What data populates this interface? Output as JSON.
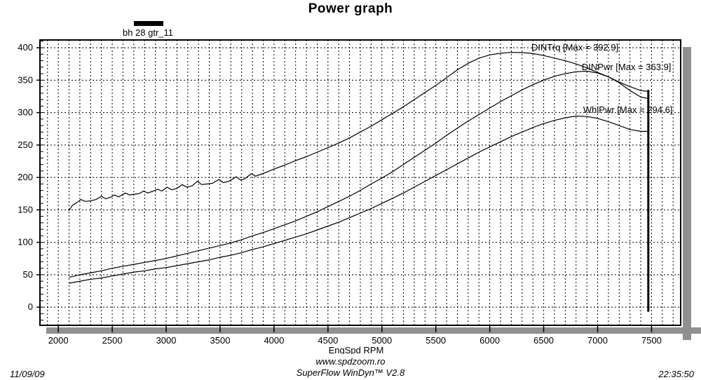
{
  "title": "Power graph",
  "legend": {
    "run_label": "bh 28 gtr_11",
    "swatch_color": "#000000"
  },
  "footer": {
    "website": "www.spdzoom.ro",
    "software": "SuperFlow WinDyn™ V2.8",
    "date": "11/09/09",
    "time": "22:35:50"
  },
  "chart_data": {
    "type": "line",
    "title": "Power graph",
    "xlabel": "EngSpd  RPM",
    "ylabel": "",
    "xlim": [
      1830,
      7770
    ],
    "ylim": [
      -28,
      412
    ],
    "xticks": [
      2000,
      2500,
      3000,
      3500,
      4000,
      4500,
      5000,
      5500,
      6000,
      6500,
      7000,
      7500
    ],
    "yticks": [
      0,
      50,
      100,
      150,
      200,
      250,
      300,
      350,
      400
    ],
    "grid": {
      "x_step": 100,
      "y_minor_step": 10,
      "style": "dashed",
      "color": "#000000"
    },
    "colors": {
      "curve": "#000000",
      "shadow": "#909090",
      "axis": "#000000"
    },
    "legend_position": "above-plot-left",
    "end_marker": {
      "rpm": 7470,
      "value_top": 335,
      "value_bottom": -7
    },
    "series": [
      {
        "name": "DINTrq",
        "label": "DINTrq [Max = 392.9]",
        "max": 392.9,
        "label_anchor": {
          "rpm": 6386,
          "value": 400
        },
        "points": [
          [
            2100,
            149
          ],
          [
            2130,
            157
          ],
          [
            2170,
            161
          ],
          [
            2210,
            166
          ],
          [
            2250,
            163
          ],
          [
            2300,
            164
          ],
          [
            2350,
            166
          ],
          [
            2400,
            171
          ],
          [
            2440,
            167
          ],
          [
            2490,
            170
          ],
          [
            2520,
            173
          ],
          [
            2560,
            170
          ],
          [
            2620,
            176
          ],
          [
            2660,
            173
          ],
          [
            2700,
            174
          ],
          [
            2750,
            175
          ],
          [
            2790,
            179
          ],
          [
            2830,
            176
          ],
          [
            2880,
            179
          ],
          [
            2920,
            182
          ],
          [
            2960,
            179
          ],
          [
            3010,
            185
          ],
          [
            3050,
            181
          ],
          [
            3100,
            183
          ],
          [
            3150,
            189
          ],
          [
            3190,
            185
          ],
          [
            3240,
            187
          ],
          [
            3290,
            194
          ],
          [
            3330,
            189
          ],
          [
            3380,
            190
          ],
          [
            3430,
            191
          ],
          [
            3490,
            197
          ],
          [
            3530,
            192
          ],
          [
            3580,
            194
          ],
          [
            3650,
            201
          ],
          [
            3690,
            196
          ],
          [
            3730,
            198
          ],
          [
            3790,
            206
          ],
          [
            3830,
            202
          ],
          [
            3880,
            205
          ],
          [
            3930,
            208
          ],
          [
            4000,
            213
          ],
          [
            4100,
            219
          ],
          [
            4200,
            226
          ],
          [
            4300,
            232
          ],
          [
            4400,
            239
          ],
          [
            4500,
            246
          ],
          [
            4600,
            253
          ],
          [
            4700,
            261
          ],
          [
            4800,
            270
          ],
          [
            4900,
            279
          ],
          [
            5000,
            289
          ],
          [
            5100,
            299
          ],
          [
            5200,
            309
          ],
          [
            5300,
            320
          ],
          [
            5400,
            331
          ],
          [
            5500,
            342
          ],
          [
            5600,
            354
          ],
          [
            5700,
            366
          ],
          [
            5800,
            376
          ],
          [
            5900,
            384
          ],
          [
            6000,
            389
          ],
          [
            6100,
            391.5
          ],
          [
            6200,
            392.9
          ],
          [
            6300,
            392.5
          ],
          [
            6400,
            391
          ],
          [
            6500,
            388
          ],
          [
            6600,
            384
          ],
          [
            6700,
            380
          ],
          [
            6800,
            375
          ],
          [
            6900,
            369
          ],
          [
            7000,
            362
          ],
          [
            7100,
            355
          ],
          [
            7200,
            347
          ],
          [
            7300,
            340
          ],
          [
            7400,
            334
          ],
          [
            7460,
            333
          ]
        ]
      },
      {
        "name": "DINPwr",
        "label": "DINPwr [Max = 363.9]",
        "max": 363.9,
        "label_anchor": {
          "rpm": 6853,
          "value": 370
        },
        "points": [
          [
            2100,
            46
          ],
          [
            2200,
            50
          ],
          [
            2300,
            53
          ],
          [
            2400,
            56
          ],
          [
            2500,
            60
          ],
          [
            2600,
            63
          ],
          [
            2700,
            66
          ],
          [
            2800,
            69
          ],
          [
            2900,
            72
          ],
          [
            3000,
            75
          ],
          [
            3100,
            79
          ],
          [
            3200,
            83
          ],
          [
            3300,
            87
          ],
          [
            3400,
            91
          ],
          [
            3500,
            95
          ],
          [
            3600,
            99
          ],
          [
            3700,
            104
          ],
          [
            3800,
            110
          ],
          [
            3900,
            115
          ],
          [
            4000,
            121
          ],
          [
            4100,
            127
          ],
          [
            4200,
            133
          ],
          [
            4300,
            140
          ],
          [
            4400,
            147
          ],
          [
            4500,
            155
          ],
          [
            4600,
            163
          ],
          [
            4700,
            171
          ],
          [
            4800,
            180
          ],
          [
            4900,
            190
          ],
          [
            5000,
            199
          ],
          [
            5100,
            209
          ],
          [
            5200,
            220
          ],
          [
            5300,
            231
          ],
          [
            5400,
            242
          ],
          [
            5500,
            253
          ],
          [
            5600,
            265
          ],
          [
            5700,
            276
          ],
          [
            5800,
            287
          ],
          [
            5900,
            297
          ],
          [
            6000,
            307
          ],
          [
            6100,
            317
          ],
          [
            6200,
            326
          ],
          [
            6300,
            335
          ],
          [
            6400,
            343
          ],
          [
            6500,
            350
          ],
          [
            6600,
            356
          ],
          [
            6700,
            360
          ],
          [
            6800,
            363
          ],
          [
            6900,
            363.9
          ],
          [
            7000,
            361
          ],
          [
            7100,
            355
          ],
          [
            7200,
            346
          ],
          [
            7300,
            334
          ],
          [
            7400,
            324
          ],
          [
            7460,
            322
          ]
        ]
      },
      {
        "name": "WhlPwr",
        "label": "WhlPwr [Max = 294.6]",
        "max": 294.6,
        "label_anchor": {
          "rpm": 6866,
          "value": 304
        },
        "points": [
          [
            2100,
            37
          ],
          [
            2200,
            40
          ],
          [
            2300,
            43
          ],
          [
            2400,
            45
          ],
          [
            2500,
            48
          ],
          [
            2600,
            51
          ],
          [
            2700,
            54
          ],
          [
            2800,
            56
          ],
          [
            2900,
            59
          ],
          [
            3000,
            61
          ],
          [
            3100,
            64
          ],
          [
            3200,
            67
          ],
          [
            3300,
            70
          ],
          [
            3400,
            73
          ],
          [
            3500,
            77
          ],
          [
            3600,
            80
          ],
          [
            3700,
            84
          ],
          [
            3800,
            89
          ],
          [
            3900,
            93
          ],
          [
            4000,
            98
          ],
          [
            4100,
            103
          ],
          [
            4200,
            108
          ],
          [
            4300,
            113
          ],
          [
            4400,
            119
          ],
          [
            4500,
            125
          ],
          [
            4600,
            131
          ],
          [
            4700,
            138
          ],
          [
            4800,
            145
          ],
          [
            4900,
            152
          ],
          [
            5000,
            160
          ],
          [
            5100,
            168
          ],
          [
            5200,
            176
          ],
          [
            5300,
            185
          ],
          [
            5400,
            194
          ],
          [
            5500,
            203
          ],
          [
            5600,
            212
          ],
          [
            5700,
            221
          ],
          [
            5800,
            230
          ],
          [
            5900,
            239
          ],
          [
            6000,
            247
          ],
          [
            6100,
            255
          ],
          [
            6200,
            263
          ],
          [
            6300,
            270
          ],
          [
            6400,
            277
          ],
          [
            6500,
            283
          ],
          [
            6600,
            288
          ],
          [
            6700,
            292
          ],
          [
            6800,
            294.6
          ],
          [
            6900,
            294
          ],
          [
            7000,
            291
          ],
          [
            7100,
            286
          ],
          [
            7200,
            280
          ],
          [
            7300,
            274
          ],
          [
            7400,
            271
          ],
          [
            7460,
            271
          ]
        ]
      }
    ]
  }
}
